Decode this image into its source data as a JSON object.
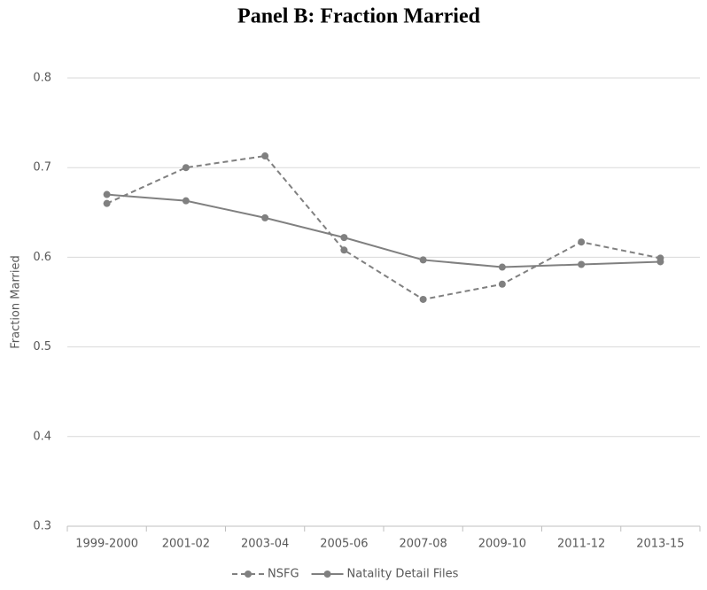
{
  "chart_data": {
    "type": "line",
    "title": "Panel B:  Fraction Married",
    "y_label": "Fraction Married",
    "categories": [
      "1999-2000",
      "2001-02",
      "2003-04",
      "2005-06",
      "2007-08",
      "2009-10",
      "2011-12",
      "2013-15"
    ],
    "series": [
      {
        "name": "NSFG",
        "color": "#808080",
        "dash": "dashed",
        "values": [
          0.66,
          0.7,
          0.713,
          0.608,
          0.553,
          0.57,
          0.617,
          0.599
        ]
      },
      {
        "name": "Natality Detail Files",
        "color": "#808080",
        "dash": "solid",
        "values": [
          0.67,
          0.663,
          0.644,
          0.622,
          0.597,
          0.589,
          0.592,
          0.595
        ]
      }
    ],
    "ylim": [
      0.3,
      0.8
    ],
    "yticks": [
      0.3,
      0.4,
      0.5,
      0.6,
      0.7,
      0.8
    ],
    "grid": true,
    "legend": "bottom"
  }
}
